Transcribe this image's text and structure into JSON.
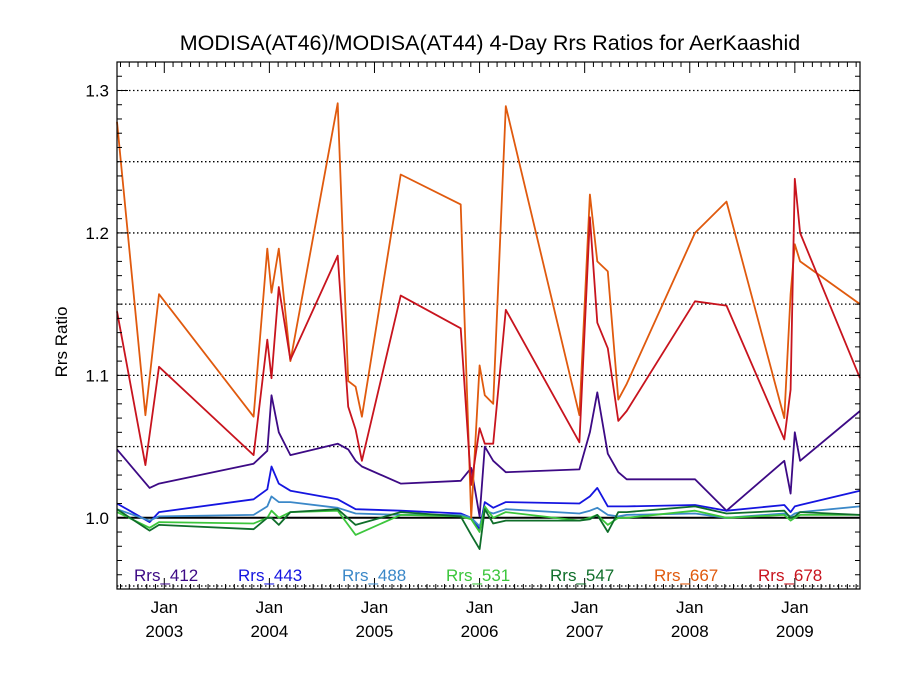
{
  "chart_data": {
    "type": "line",
    "title": "MODISA(AT46)/MODISA(AT44) 4-Day Rrs Ratios for AerKaashid",
    "ylabel": "Rrs Ratio",
    "xlabel": "",
    "xlim": [
      2002.55,
      2009.62
    ],
    "ylim": [
      0.95,
      1.32
    ],
    "y_ticks": [
      {
        "value": 1.0,
        "label": "1.0"
      },
      {
        "value": 1.1,
        "label": "1.1"
      },
      {
        "value": 1.2,
        "label": "1.2"
      },
      {
        "value": 1.3,
        "label": "1.3"
      }
    ],
    "x_ticks": [
      {
        "value": 2003.0,
        "month": "Jan",
        "year": "2003"
      },
      {
        "value": 2004.0,
        "month": "Jan",
        "year": "2004"
      },
      {
        "value": 2005.0,
        "month": "Jan",
        "year": "2005"
      },
      {
        "value": 2006.0,
        "month": "Jan",
        "year": "2006"
      },
      {
        "value": 2007.0,
        "month": "Jan",
        "year": "2007"
      },
      {
        "value": 2008.0,
        "month": "Jan",
        "year": "2008"
      },
      {
        "value": 2009.0,
        "month": "Jan",
        "year": "2009"
      }
    ],
    "gridlines_y": [
      1.05,
      1.1,
      1.15,
      1.2,
      1.25,
      1.3
    ],
    "reference_line": 1.0,
    "legend": "bottom",
    "series": [
      {
        "name": "Rrs_412",
        "color": "#3d0a85",
        "x": [
          2002.55,
          2002.86,
          2002.95,
          2003.85,
          2003.98,
          2004.02,
          2004.09,
          2004.2,
          2004.65,
          2004.75,
          2004.82,
          2004.88,
          2005.25,
          2005.82,
          2005.92,
          2006.0,
          2006.05,
          2006.13,
          2006.25,
          2006.95,
          2007.05,
          2007.12,
          2007.22,
          2007.32,
          2007.4,
          2008.05,
          2008.35,
          2008.9,
          2008.96,
          2009.0,
          2009.05,
          2009.62
        ],
        "y": [
          1.048,
          1.021,
          1.024,
          1.038,
          1.047,
          1.086,
          1.06,
          1.044,
          1.052,
          1.048,
          1.04,
          1.036,
          1.024,
          1.026,
          1.035,
          1.001,
          1.05,
          1.04,
          1.032,
          1.034,
          1.06,
          1.088,
          1.045,
          1.032,
          1.027,
          1.027,
          1.005,
          1.04,
          1.017,
          1.06,
          1.04,
          1.075
        ]
      },
      {
        "name": "Rrs_443",
        "color": "#1515e0",
        "x": [
          2002.55,
          2002.86,
          2002.95,
          2003.85,
          2003.98,
          2004.02,
          2004.09,
          2004.2,
          2004.65,
          2004.82,
          2005.25,
          2005.82,
          2005.92,
          2006.0,
          2006.05,
          2006.13,
          2006.25,
          2006.95,
          2007.05,
          2007.12,
          2007.22,
          2007.32,
          2007.4,
          2008.05,
          2008.35,
          2008.9,
          2008.96,
          2009.0,
          2009.05,
          2009.62
        ],
        "y": [
          1.01,
          0.997,
          1.004,
          1.013,
          1.02,
          1.036,
          1.024,
          1.019,
          1.013,
          1.006,
          1.005,
          1.003,
          1.0,
          0.992,
          1.011,
          1.007,
          1.011,
          1.01,
          1.015,
          1.021,
          1.008,
          1.008,
          1.008,
          1.009,
          1.005,
          1.009,
          1.004,
          1.008,
          1.009,
          1.019
        ]
      },
      {
        "name": "Rrs_488",
        "color": "#3b88c8",
        "x": [
          2002.55,
          2002.86,
          2002.95,
          2003.85,
          2003.98,
          2004.02,
          2004.09,
          2004.2,
          2004.65,
          2004.82,
          2005.25,
          2005.82,
          2005.92,
          2006.0,
          2006.05,
          2006.13,
          2006.25,
          2006.95,
          2007.05,
          2007.12,
          2007.22,
          2007.32,
          2007.4,
          2008.05,
          2008.35,
          2008.9,
          2008.96,
          2009.0,
          2009.05,
          2009.62
        ],
        "y": [
          1.006,
          0.998,
          1.001,
          1.002,
          1.008,
          1.015,
          1.011,
          1.011,
          1.007,
          1.003,
          1.002,
          1.002,
          1.0,
          0.994,
          1.005,
          1.003,
          1.006,
          1.003,
          1.005,
          1.007,
          1.002,
          1.001,
          1.002,
          1.003,
          1.0,
          1.003,
          1.001,
          1.003,
          1.004,
          1.008
        ]
      },
      {
        "name": "Rrs_531",
        "color": "#3cc63c",
        "x": [
          2002.55,
          2002.86,
          2002.95,
          2003.85,
          2003.98,
          2004.02,
          2004.09,
          2004.2,
          2004.65,
          2004.82,
          2005.25,
          2005.82,
          2005.92,
          2006.0,
          2006.05,
          2006.13,
          2006.25,
          2006.95,
          2007.05,
          2007.12,
          2007.22,
          2007.32,
          2007.4,
          2008.05,
          2008.35,
          2008.9,
          2008.96,
          2009.0,
          2009.05,
          2009.62
        ],
        "y": [
          1.004,
          0.993,
          0.997,
          0.996,
          1.0,
          1.005,
          1.0,
          1.004,
          1.005,
          0.988,
          1.002,
          1.001,
          0.999,
          0.99,
          1.008,
          1.0,
          1.004,
          0.998,
          1.0,
          1.002,
          0.995,
          1.0,
          1.0,
          1.005,
          1.0,
          1.002,
          0.998,
          1.0,
          1.002,
          1.002
        ]
      },
      {
        "name": "Rrs_547",
        "color": "#0f6e2a",
        "x": [
          2002.55,
          2002.86,
          2002.95,
          2003.85,
          2003.98,
          2004.02,
          2004.09,
          2004.2,
          2004.65,
          2004.82,
          2005.25,
          2005.82,
          2005.92,
          2006.0,
          2006.05,
          2006.13,
          2006.25,
          2006.95,
          2007.05,
          2007.12,
          2007.22,
          2007.32,
          2007.4,
          2008.05,
          2008.35,
          2008.9,
          2008.96,
          2009.0,
          2009.05,
          2009.62
        ],
        "y": [
          1.006,
          0.991,
          0.995,
          0.992,
          1.0,
          1.0,
          0.995,
          1.004,
          1.006,
          0.995,
          1.004,
          1.001,
          0.988,
          0.978,
          1.006,
          0.996,
          0.998,
          0.998,
          0.999,
          1.002,
          0.99,
          1.004,
          1.004,
          1.008,
          1.003,
          1.005,
          1.0,
          1.001,
          1.004,
          1.002
        ]
      },
      {
        "name": "Rrs_667",
        "color": "#e05a0e",
        "x": [
          2002.55,
          2002.82,
          2002.95,
          2003.85,
          2003.98,
          2004.02,
          2004.09,
          2004.2,
          2004.65,
          2004.75,
          2004.82,
          2004.88,
          2005.25,
          2005.82,
          2005.92,
          2006.0,
          2006.05,
          2006.13,
          2006.25,
          2006.95,
          2007.05,
          2007.12,
          2007.22,
          2007.32,
          2007.4,
          2008.05,
          2008.35,
          2008.9,
          2008.96,
          2009.0,
          2009.05,
          2009.62
        ],
        "y": [
          1.278,
          1.072,
          1.157,
          1.071,
          1.189,
          1.158,
          1.189,
          1.11,
          1.291,
          1.096,
          1.092,
          1.071,
          1.241,
          1.22,
          1.0,
          1.107,
          1.086,
          1.08,
          1.289,
          1.072,
          1.227,
          1.18,
          1.173,
          1.083,
          1.094,
          1.2,
          1.222,
          1.07,
          1.157,
          1.192,
          1.18,
          1.15
        ]
      },
      {
        "name": "Rrs_678",
        "color": "#c8141e",
        "x": [
          2002.55,
          2002.82,
          2002.95,
          2003.85,
          2003.98,
          2004.02,
          2004.09,
          2004.2,
          2004.65,
          2004.75,
          2004.82,
          2004.88,
          2005.25,
          2005.82,
          2005.92,
          2006.0,
          2006.05,
          2006.13,
          2006.25,
          2006.95,
          2007.05,
          2007.12,
          2007.22,
          2007.32,
          2007.4,
          2008.05,
          2008.35,
          2008.9,
          2008.96,
          2009.0,
          2009.05,
          2009.62
        ],
        "y": [
          1.145,
          1.037,
          1.106,
          1.044,
          1.125,
          1.098,
          1.162,
          1.111,
          1.184,
          1.078,
          1.062,
          1.04,
          1.156,
          1.133,
          1.023,
          1.063,
          1.052,
          1.052,
          1.146,
          1.053,
          1.211,
          1.137,
          1.119,
          1.068,
          1.075,
          1.152,
          1.149,
          1.055,
          1.09,
          1.238,
          1.2,
          1.098
        ]
      }
    ]
  }
}
